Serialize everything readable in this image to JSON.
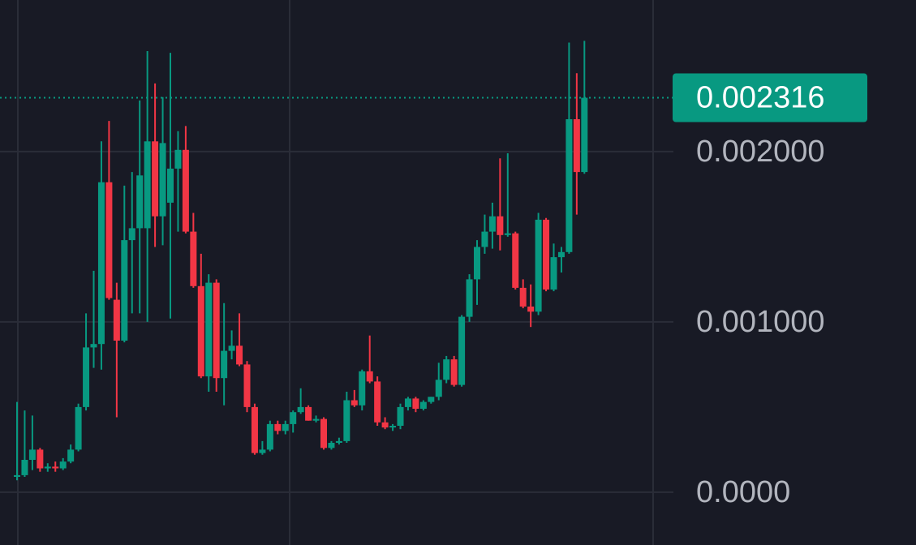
{
  "chart_data": {
    "type": "candlestick",
    "up_color": "#089981",
    "down_color": "#f23645",
    "grid": true,
    "ylim": [
      -0.00031,
      0.00289
    ],
    "yticks": [
      {
        "value": 0,
        "label": "0.0000"
      },
      {
        "value": 0.001,
        "label": "0.001000"
      },
      {
        "value": 0.002,
        "label": "0.002000"
      }
    ],
    "last_price": {
      "value": 0.002316,
      "label": "0.002316"
    },
    "open": [
      9e-05,
      0.0001,
      0.00019,
      0.00025,
      0.00014,
      0.00015,
      0.00014,
      0.00018,
      0.00025,
      0.0005,
      0.00085,
      0.00087,
      0.00182,
      0.00113,
      0.00089,
      0.00148,
      0.00155,
      0.00155,
      0.00206,
      0.00162,
      0.0017,
      0.0019,
      0.00201,
      0.00153,
      0.00121,
      0.00068,
      0.00123,
      0.00067,
      0.00083,
      0.00086,
      0.00075,
      0.0005,
      0.00023,
      0.00025,
      0.0004,
      0.00036,
      0.0004,
      0.00047,
      0.0005,
      0.00042,
      0.00043,
      0.00026,
      0.00029,
      0.0003,
      0.00054,
      0.00051,
      0.00071,
      0.00065,
      0.00041,
      0.00038,
      0.00039,
      0.0005,
      0.00055,
      0.00049,
      0.00053,
      0.00056,
      0.00066,
      0.00078,
      0.00063,
      0.00103,
      0.00125,
      0.00144,
      0.00153,
      0.00162,
      0.00151,
      0.00152,
      0.0012,
      0.00109,
      0.00106,
      0.0016,
      0.00119,
      0.00138,
      0.00141,
      0.00219,
      0.00188
    ],
    "high": [
      0.00053,
      0.00048,
      0.00045,
      0.00026,
      0.00017,
      0.00018,
      0.0002,
      0.00028,
      0.00052,
      0.00105,
      0.0013,
      0.00206,
      0.00218,
      0.00123,
      0.0018,
      0.00188,
      0.0023,
      0.00259,
      0.0024,
      0.00232,
      0.00258,
      0.00212,
      0.00215,
      0.00164,
      0.0014,
      0.00128,
      0.00125,
      0.00111,
      0.00095,
      0.00105,
      0.00077,
      0.00052,
      0.0003,
      0.00042,
      0.00042,
      0.00042,
      0.00048,
      0.00061,
      0.00051,
      0.00045,
      0.00044,
      0.0003,
      0.00032,
      0.00059,
      0.0006,
      0.00072,
      0.00092,
      0.00068,
      0.00044,
      0.0004,
      0.00052,
      0.00056,
      0.00056,
      0.00054,
      0.00056,
      0.00076,
      0.0008,
      0.0008,
      0.00104,
      0.00128,
      0.00148,
      0.00163,
      0.0017,
      0.00196,
      0.00199,
      0.00153,
      0.00125,
      0.00122,
      0.00164,
      0.00161,
      0.00146,
      0.00144,
      0.00264,
      0.00246,
      0.00265
    ],
    "low": [
      7e-05,
      9e-05,
      0.00013,
      0.00012,
      0.00012,
      0.00012,
      0.00013,
      0.00017,
      0.00024,
      0.00048,
      0.00073,
      0.00072,
      0.00113,
      0.00044,
      0.00088,
      0.00105,
      0.00105,
      0.001,
      0.00144,
      0.00145,
      0.00102,
      0.00153,
      0.00152,
      0.0012,
      0.00067,
      0.00059,
      0.00059,
      0.00051,
      0.00078,
      0.00074,
      0.00047,
      0.00022,
      0.00022,
      0.00024,
      0.00034,
      0.00034,
      0.00035,
      0.00046,
      0.00042,
      0.00041,
      0.00025,
      0.00025,
      0.00028,
      0.00029,
      0.0005,
      0.00048,
      0.00064,
      0.00039,
      0.00037,
      0.00036,
      0.00037,
      0.00048,
      0.00047,
      0.00048,
      0.00052,
      0.00054,
      0.00064,
      0.00062,
      0.00062,
      0.001,
      0.0011,
      0.0014,
      0.00143,
      0.00142,
      0.0015,
      0.00119,
      0.00108,
      0.00097,
      0.00104,
      0.00118,
      0.00118,
      0.00129,
      0.0014,
      0.00163,
      0.00187
    ],
    "close": [
      0.0001,
      0.00019,
      0.00025,
      0.00014,
      0.00015,
      0.00014,
      0.00018,
      0.00025,
      0.0005,
      0.00085,
      0.00087,
      0.00182,
      0.00114,
      0.00089,
      0.00148,
      0.00155,
      0.00186,
      0.00206,
      0.00162,
      0.00205,
      0.0019,
      0.00201,
      0.00153,
      0.00121,
      0.00068,
      0.00123,
      0.00067,
      0.00083,
      0.00086,
      0.00075,
      0.0005,
      0.00023,
      0.00025,
      0.0004,
      0.00036,
      0.0004,
      0.00047,
      0.0005,
      0.00042,
      0.00043,
      0.00026,
      0.00029,
      0.0003,
      0.00054,
      0.00051,
      0.00071,
      0.00065,
      0.00041,
      0.00038,
      0.00039,
      0.0005,
      0.00055,
      0.00049,
      0.00053,
      0.00056,
      0.00066,
      0.00078,
      0.00063,
      0.00103,
      0.00125,
      0.00144,
      0.00153,
      0.00162,
      0.00151,
      0.00152,
      0.0012,
      0.00109,
      0.00106,
      0.0016,
      0.00119,
      0.00138,
      0.00141,
      0.00219,
      0.00188,
      0.002316
    ]
  }
}
